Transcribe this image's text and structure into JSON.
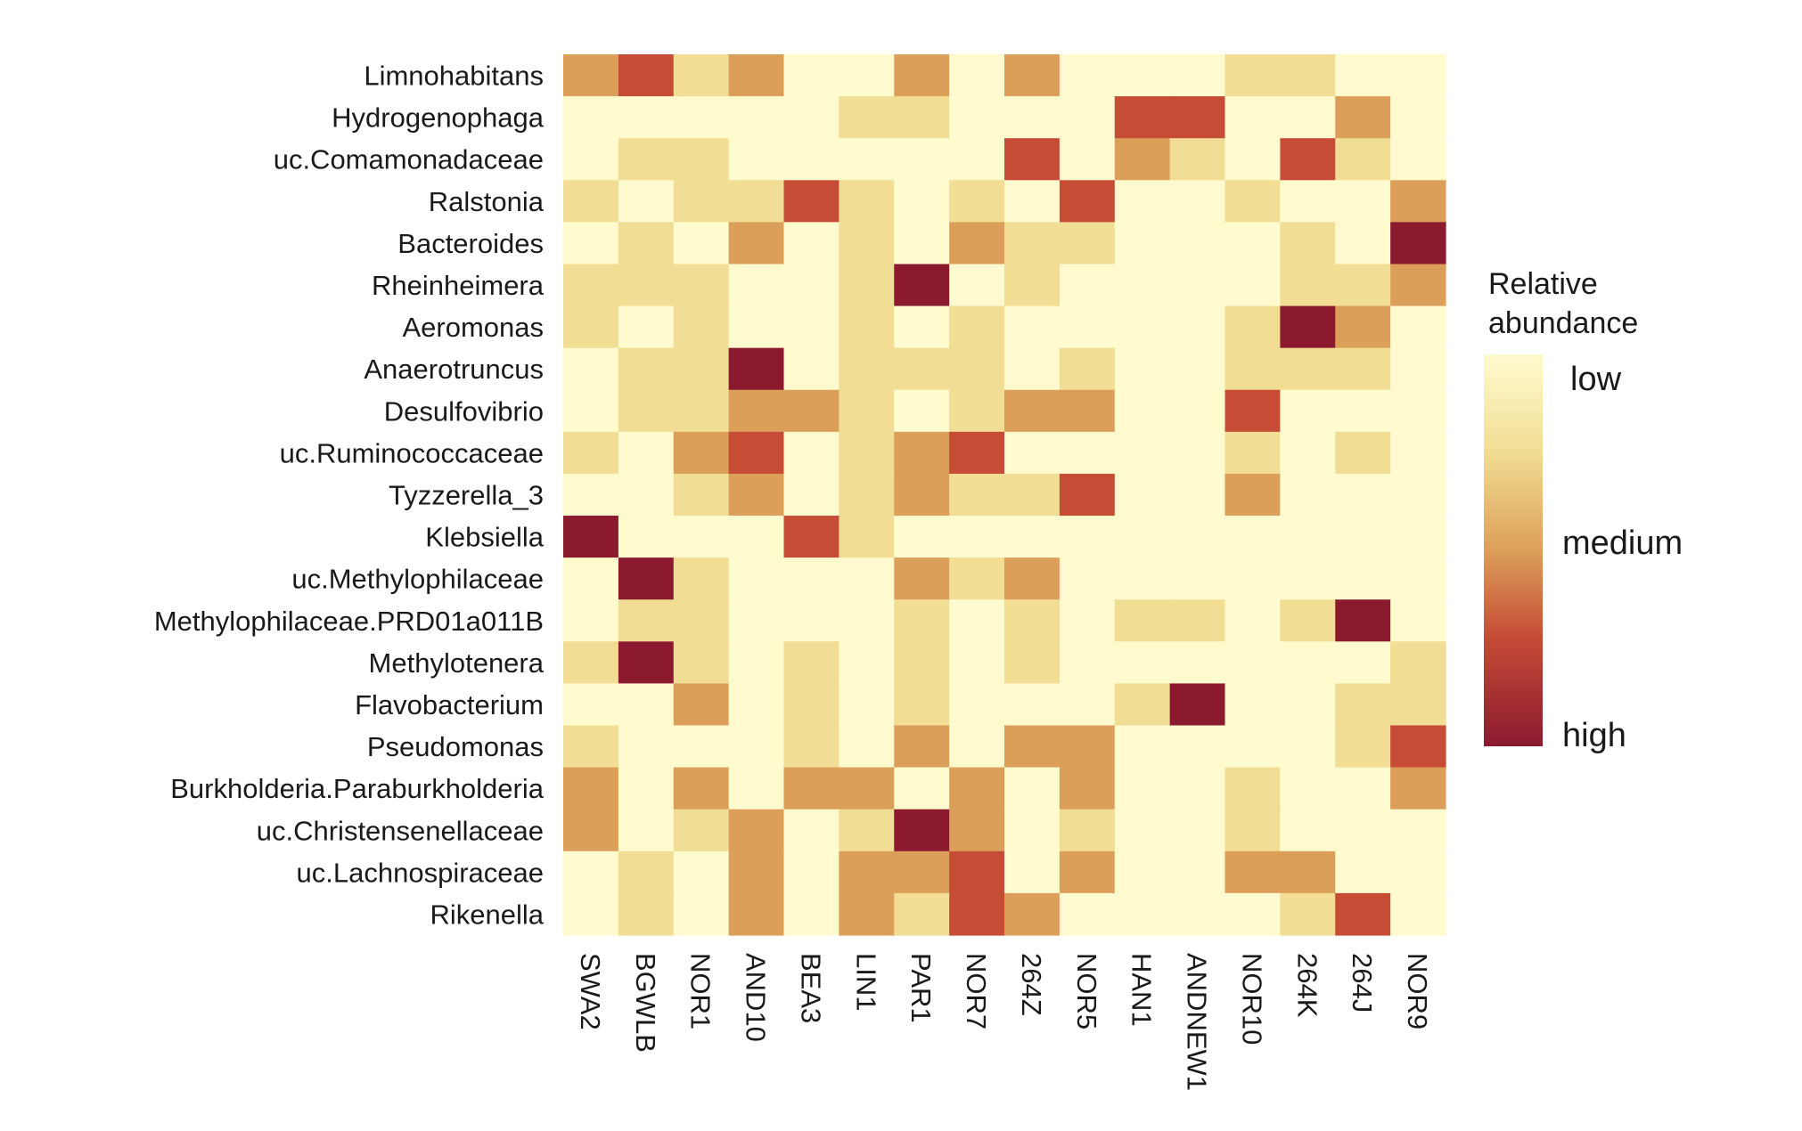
{
  "chart_data": {
    "type": "heatmap",
    "title": "",
    "xlabel": "",
    "ylabel": "",
    "x_categories": [
      "SWA2",
      "BGWLB",
      "NOR1",
      "AND10",
      "BEA3",
      "LIN1",
      "PAR1",
      "NOR7",
      "264Z",
      "NOR5",
      "HAN1",
      "ANDNEW1",
      "NOR10",
      "264K",
      "264J",
      "NOR9"
    ],
    "y_categories": [
      "Limnohabitans",
      "Hydrogenophaga",
      "uc.Comamonadaceae",
      "Ralstonia",
      "Bacteroides",
      "Rheinheimera",
      "Aeromonas",
      "Anaerotruncus",
      "Desulfovibrio",
      "uc.Ruminococcaceae",
      "Tyzzerella_3",
      "Klebsiella",
      "uc.Methylophilaceae",
      "Methylophilaceae.PRD01a011B",
      "Methylotenera",
      "Flavobacterium",
      "Pseudomonas",
      "Burkholderia.Paraburkholderia",
      "uc.Christensenellaceae",
      "uc.Lachnospiraceae",
      "Rikenella"
    ],
    "value_scale": "ordinal abundance level 0 (low) to 4 (high)",
    "values": [
      [
        2,
        3,
        1,
        2,
        0,
        0,
        2,
        0,
        2,
        0,
        0,
        0,
        1,
        1,
        0,
        0
      ],
      [
        0,
        0,
        0,
        0,
        0,
        1,
        1,
        0,
        0,
        0,
        3,
        3,
        0,
        0,
        2,
        0
      ],
      [
        0,
        1,
        1,
        0,
        0,
        0,
        0,
        0,
        3,
        0,
        2,
        1,
        0,
        3,
        1,
        0
      ],
      [
        1,
        0,
        1,
        1,
        3,
        1,
        0,
        1,
        0,
        3,
        0,
        0,
        1,
        0,
        0,
        2
      ],
      [
        0,
        1,
        0,
        2,
        0,
        1,
        0,
        2,
        1,
        1,
        0,
        0,
        0,
        1,
        0,
        4
      ],
      [
        1,
        1,
        1,
        0,
        0,
        1,
        4,
        0,
        1,
        0,
        0,
        0,
        0,
        1,
        1,
        2
      ],
      [
        1,
        0,
        1,
        0,
        0,
        1,
        0,
        1,
        0,
        0,
        0,
        0,
        1,
        4,
        2,
        0
      ],
      [
        0,
        1,
        1,
        4,
        0,
        1,
        1,
        1,
        0,
        1,
        0,
        0,
        1,
        1,
        1,
        0
      ],
      [
        0,
        1,
        1,
        2,
        2,
        1,
        0,
        1,
        2,
        2,
        0,
        0,
        3,
        0,
        0,
        0
      ],
      [
        1,
        0,
        2,
        3,
        0,
        1,
        2,
        3,
        0,
        0,
        0,
        0,
        1,
        0,
        1,
        0
      ],
      [
        0,
        0,
        1,
        2,
        0,
        1,
        2,
        1,
        1,
        3,
        0,
        0,
        2,
        0,
        0,
        0
      ],
      [
        4,
        0,
        0,
        0,
        3,
        1,
        0,
        0,
        0,
        0,
        0,
        0,
        0,
        0,
        0,
        0
      ],
      [
        0,
        4,
        1,
        0,
        0,
        0,
        2,
        1,
        2,
        0,
        0,
        0,
        0,
        0,
        0,
        0
      ],
      [
        0,
        1,
        1,
        0,
        0,
        0,
        1,
        0,
        1,
        0,
        1,
        1,
        0,
        1,
        4,
        0
      ],
      [
        1,
        4,
        1,
        0,
        1,
        0,
        1,
        0,
        1,
        0,
        0,
        0,
        0,
        0,
        0,
        1
      ],
      [
        0,
        0,
        2,
        0,
        1,
        0,
        1,
        0,
        0,
        0,
        1,
        4,
        0,
        0,
        1,
        1
      ],
      [
        1,
        0,
        0,
        0,
        1,
        0,
        2,
        0,
        2,
        2,
        0,
        0,
        0,
        0,
        1,
        3
      ],
      [
        2,
        0,
        2,
        0,
        2,
        2,
        0,
        2,
        0,
        2,
        0,
        0,
        1,
        0,
        0,
        2
      ],
      [
        2,
        0,
        1,
        2,
        0,
        1,
        4,
        2,
        0,
        1,
        0,
        0,
        1,
        0,
        0,
        0
      ],
      [
        0,
        1,
        0,
        2,
        0,
        2,
        2,
        3,
        0,
        2,
        0,
        0,
        2,
        2,
        0,
        0
      ],
      [
        0,
        1,
        0,
        2,
        0,
        2,
        1,
        3,
        2,
        0,
        0,
        0,
        0,
        1,
        3,
        0
      ]
    ],
    "color_levels": [
      "#FFFBCF",
      "#F1DD93",
      "#DC9F5A",
      "#C64C36",
      "#8B1A2F"
    ],
    "legend": {
      "title_line1": "Relative",
      "title_line2": "abundance",
      "ticks": [
        "low",
        "medium",
        "high"
      ],
      "placement": "right"
    },
    "grid": false
  }
}
